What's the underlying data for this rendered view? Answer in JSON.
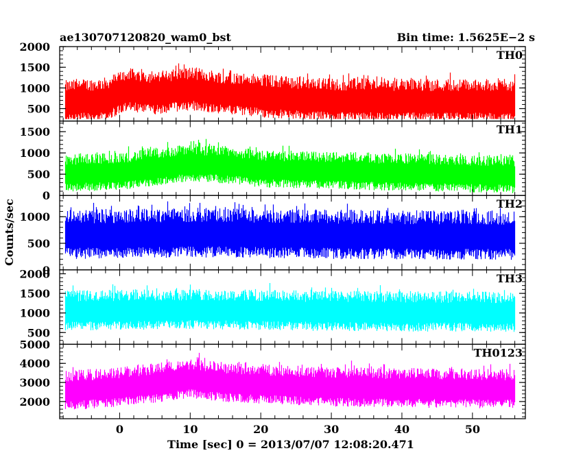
{
  "header": {
    "title": "ae130707120820_wam0_bst",
    "bin_time": "Bin time: 1.5625E−2 s"
  },
  "chart_data": {
    "type": "line",
    "ylabel": "Counts/sec",
    "xlabel": "Time [sec] 0 = 2013/07/07 12:08:20.471",
    "xlim": [
      -8.5,
      57.5
    ],
    "x_ticks": [
      0,
      10,
      20,
      30,
      40,
      50
    ],
    "x_start": -7.8,
    "x_end": 56.0,
    "grid": false,
    "panels": [
      {
        "name": "TH0",
        "color": "#ff0000",
        "ylim": [
          200,
          2000
        ],
        "y_ticks": [
          500,
          1000,
          1500,
          2000
        ],
        "level": [
          [
            -7.8,
            650
          ],
          [
            -2,
            720
          ],
          [
            1,
            950
          ],
          [
            5,
            870
          ],
          [
            10,
            980
          ],
          [
            14,
            880
          ],
          [
            18,
            830
          ],
          [
            22,
            770
          ],
          [
            30,
            700
          ],
          [
            40,
            690
          ],
          [
            56,
            680
          ]
        ],
        "spread": 430,
        "min_floor": 250
      },
      {
        "name": "TH1",
        "color": "#00ff00",
        "ylim": [
          0,
          1750
        ],
        "y_ticks": [
          0,
          500,
          1000,
          1500
        ],
        "level": [
          [
            -7.8,
            520
          ],
          [
            0,
            560
          ],
          [
            5,
            660
          ],
          [
            10,
            760
          ],
          [
            16,
            700
          ],
          [
            20,
            620
          ],
          [
            30,
            580
          ],
          [
            40,
            540
          ],
          [
            56,
            480
          ]
        ],
        "spread": 360,
        "min_floor": 40
      },
      {
        "name": "TH2",
        "color": "#0000ff",
        "ylim": [
          0,
          1400
        ],
        "y_ticks": [
          0,
          500,
          1000
        ],
        "level": [
          [
            -7.8,
            660
          ],
          [
            10,
            690
          ],
          [
            20,
            680
          ],
          [
            30,
            660
          ],
          [
            40,
            650
          ],
          [
            56,
            640
          ]
        ],
        "spread": 380,
        "min_floor": 20
      },
      {
        "name": "TH3",
        "color": "#00ffff",
        "ylim": [
          200,
          2100
        ],
        "y_ticks": [
          500,
          1000,
          1500,
          2000
        ],
        "level": [
          [
            -7.8,
            1050
          ],
          [
            10,
            1090
          ],
          [
            20,
            1070
          ],
          [
            30,
            1040
          ],
          [
            40,
            1030
          ],
          [
            56,
            1020
          ]
        ],
        "spread": 420,
        "min_floor": 300
      },
      {
        "name": "TH0123",
        "color": "#ff00ff",
        "ylim": [
          1100,
          5000
        ],
        "y_ticks": [
          2000,
          3000,
          4000,
          5000
        ],
        "level": [
          [
            -7.8,
            2550
          ],
          [
            0,
            2750
          ],
          [
            5,
            2950
          ],
          [
            10,
            3200
          ],
          [
            15,
            3000
          ],
          [
            20,
            2900
          ],
          [
            30,
            2750
          ],
          [
            40,
            2700
          ],
          [
            56,
            2650
          ]
        ],
        "spread": 850,
        "min_floor": 1350
      }
    ]
  }
}
